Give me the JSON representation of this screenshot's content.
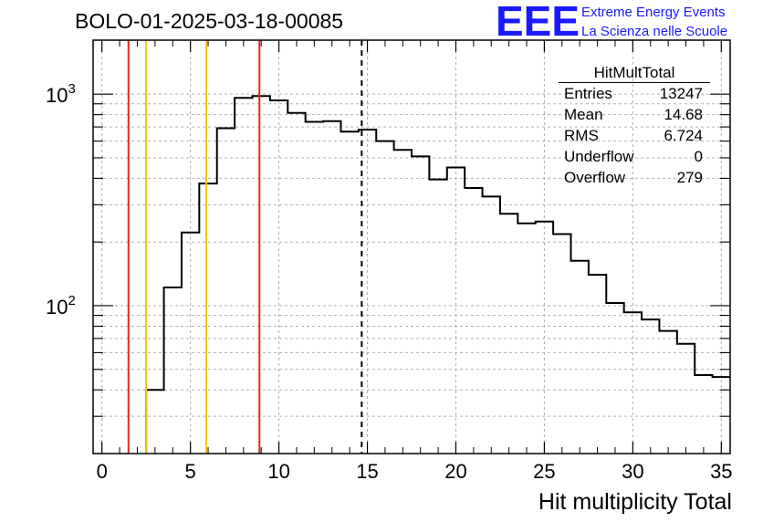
{
  "header": {
    "run_title": "BOLO-01-2025-03-18-00085"
  },
  "logo": {
    "mark": "EEE",
    "line1": "Extreme Energy Events",
    "line2": "La Scienza nelle Scuole",
    "color": "#1a1aff"
  },
  "stats_box": {
    "title": "HitMultTotal",
    "rows": [
      {
        "label": "Entries",
        "value": "13247"
      },
      {
        "label": "Mean",
        "value": "14.68"
      },
      {
        "label": "RMS",
        "value": "6.724"
      },
      {
        "label": "Underflow",
        "value": "0"
      },
      {
        "label": "Overflow",
        "value": "279"
      }
    ]
  },
  "chart_data": {
    "type": "histogram",
    "title": "BOLO-01-2025-03-18-00085",
    "xlabel": "Hit multiplicity Total",
    "ylabel": "",
    "xlim": [
      -0.5,
      35.5
    ],
    "ylim": [
      20,
      1800
    ],
    "yscale": "log",
    "grid": true,
    "bin_width": 1,
    "bin_low_edges": [
      -0.5,
      0.5,
      1.5,
      2.5,
      3.5,
      4.5,
      5.5,
      6.5,
      7.5,
      8.5,
      9.5,
      10.5,
      11.5,
      12.5,
      13.5,
      14.5,
      15.5,
      16.5,
      17.5,
      18.5,
      19.5,
      20.5,
      21.5,
      22.5,
      23.5,
      24.5,
      25.5,
      26.5,
      27.5,
      28.5,
      29.5,
      30.5,
      31.5,
      32.5,
      33.5,
      34.5
    ],
    "values": [
      0,
      0,
      0,
      40,
      122,
      222,
      378,
      690,
      960,
      980,
      935,
      815,
      740,
      745,
      665,
      680,
      600,
      545,
      508,
      395,
      450,
      360,
      328,
      272,
      245,
      250,
      218,
      163,
      140,
      103,
      93,
      86,
      76,
      66,
      47,
      46
    ],
    "x_ticks": [
      0,
      5,
      10,
      15,
      20,
      25,
      30,
      35
    ],
    "x_tick_labels": [
      "0",
      "5",
      "10",
      "15",
      "20",
      "25",
      "30",
      "35"
    ],
    "y_ticks": [
      100,
      1000
    ],
    "y_tick_labels": [
      "10²",
      "10³"
    ],
    "y_tick_base": "10",
    "y_tick_exponents": [
      "2",
      "3"
    ],
    "vertical_lines": [
      {
        "x": 1.5,
        "color": "#e8261d",
        "style": "solid"
      },
      {
        "x": 2.5,
        "color": "#f2c40f",
        "style": "solid"
      },
      {
        "x": 5.9,
        "color": "#f2c40f",
        "style": "solid"
      },
      {
        "x": 8.9,
        "color": "#e8261d",
        "style": "solid"
      },
      {
        "x": 14.68,
        "color": "#000000",
        "style": "dashed"
      }
    ]
  }
}
